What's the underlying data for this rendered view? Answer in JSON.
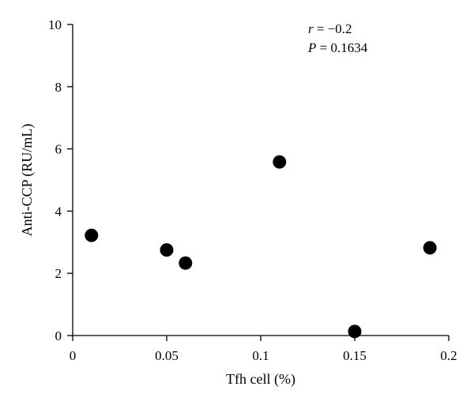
{
  "chart_data": {
    "type": "scatter",
    "xlabel": "Tfh cell (%)",
    "ylabel": "Anti-CCP (RU/mL)",
    "xlim": [
      0,
      0.2
    ],
    "ylim": [
      0,
      10
    ],
    "x_ticks": [
      "0",
      "0.05",
      "0.1",
      "0.15",
      "0.2"
    ],
    "y_ticks": [
      "0",
      "2",
      "4",
      "6",
      "8",
      "10"
    ],
    "grid": false,
    "points": [
      {
        "x": 0.01,
        "y": 3.22
      },
      {
        "x": 0.05,
        "y": 2.75
      },
      {
        "x": 0.06,
        "y": 2.33
      },
      {
        "x": 0.11,
        "y": 5.58
      },
      {
        "x": 0.15,
        "y": 0.13
      },
      {
        "x": 0.19,
        "y": 2.82
      }
    ],
    "annotations": {
      "r_label": "r",
      "r_value": " = −0.2",
      "p_label": "P",
      "p_value": " = 0.1634"
    }
  }
}
